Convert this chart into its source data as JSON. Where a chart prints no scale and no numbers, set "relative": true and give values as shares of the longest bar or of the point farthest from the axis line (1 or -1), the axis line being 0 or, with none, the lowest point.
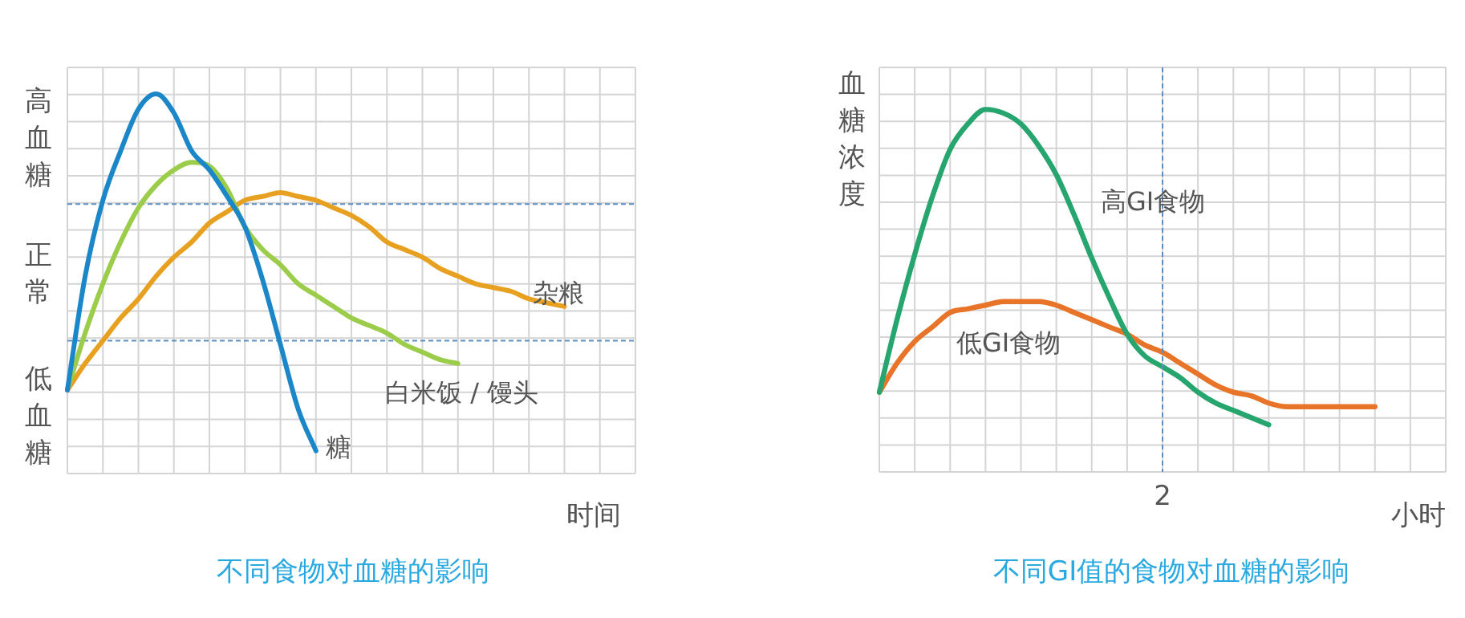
{
  "chart_data": [
    {
      "type": "line",
      "title": "不同食物对血糖的影响",
      "xlabel": "时间",
      "annotations": [
        "高血糖",
        "正常",
        "低血糖"
      ],
      "categories": [
        null,
        null,
        null,
        null,
        null,
        null,
        null,
        null,
        null,
        null,
        null,
        null,
        null,
        null,
        null,
        null,
        null,
        null,
        null,
        null,
        null,
        null,
        null,
        null,
        null,
        null,
        null,
        null,
        null,
        null,
        null,
        null,
        null
      ],
      "relative": true,
      "grid": true,
      "marker": "none",
      "tick_labels": false,
      "ref_lines": [
        {
          "axis": "y",
          "value": 0.71,
          "color": "#5b8fc0",
          "line_style": "dashed"
        },
        {
          "axis": "y",
          "value": 0.35,
          "color": "#5b8fc0",
          "line_style": "dashed"
        }
      ],
      "series": [
        {
          "name": "糖",
          "color": "#1b87c9",
          "values": [
            0.22,
            0.52,
            0.72,
            0.85,
            0.96,
            1.0,
            0.95,
            0.85,
            0.8,
            0.73,
            0.65,
            0.51,
            0.34,
            0.17,
            0.06,
            null,
            null,
            null,
            null,
            null,
            null,
            null,
            null,
            null,
            null,
            null,
            null,
            null,
            null,
            null,
            null,
            null,
            null
          ]
        },
        {
          "name": "白米饭 / 馒头",
          "color": "#9bcc4a",
          "values": [
            0.22,
            0.37,
            0.5,
            0.61,
            0.7,
            0.76,
            0.8,
            0.82,
            0.81,
            0.75,
            0.65,
            0.59,
            0.55,
            0.5,
            0.47,
            0.44,
            0.41,
            0.39,
            0.37,
            0.34,
            0.32,
            0.3,
            0.29,
            null,
            null,
            null,
            null,
            null,
            null,
            null,
            null,
            null,
            null
          ]
        },
        {
          "name": "杂粮",
          "color": "#e8a020",
          "values": [
            0.22,
            0.29,
            0.35,
            0.41,
            0.46,
            0.52,
            0.57,
            0.61,
            0.66,
            0.69,
            0.72,
            0.73,
            0.74,
            0.73,
            0.72,
            0.7,
            0.68,
            0.65,
            0.61,
            0.59,
            0.57,
            0.54,
            0.52,
            0.5,
            0.49,
            0.48,
            0.46,
            0.45,
            0.44,
            null,
            null,
            null,
            null
          ]
        }
      ]
    },
    {
      "type": "line",
      "title": "不同GI值的食物对血糖的影响",
      "xlabel": "小时",
      "ylabel": "血糖浓度",
      "categories": [
        null,
        null,
        null,
        null,
        null,
        null,
        null,
        null,
        null,
        null,
        null,
        null,
        null,
        null,
        null,
        null,
        null,
        null,
        null,
        null,
        null,
        null,
        null,
        null,
        null,
        null,
        null,
        null,
        null,
        null,
        null,
        null,
        null
      ],
      "relative": true,
      "grid": true,
      "marker": "none",
      "tick_labels": false,
      "annotations": [
        "2"
      ],
      "series": [
        {
          "name": "高GI食物",
          "color": "#27a56e",
          "values": [
            0.22,
            0.42,
            0.6,
            0.76,
            0.89,
            0.96,
            1.0,
            0.99,
            0.96,
            0.9,
            0.82,
            0.71,
            0.59,
            0.48,
            0.38,
            0.32,
            0.29,
            0.26,
            0.22,
            0.19,
            0.17,
            0.15,
            0.13,
            null,
            null,
            null,
            null,
            null,
            null,
            null,
            null,
            null,
            null
          ]
        },
        {
          "name": "低GI食物",
          "color": "#e8742a",
          "values": [
            0.22,
            0.3,
            0.36,
            0.4,
            0.44,
            0.45,
            0.46,
            0.47,
            0.47,
            0.47,
            0.46,
            0.44,
            0.42,
            0.4,
            0.38,
            0.35,
            0.33,
            0.3,
            0.27,
            0.24,
            0.22,
            0.21,
            0.19,
            0.18,
            0.18,
            0.18,
            0.18,
            0.18,
            0.18,
            null,
            null,
            null,
            null
          ]
        }
      ]
    }
  ]
}
